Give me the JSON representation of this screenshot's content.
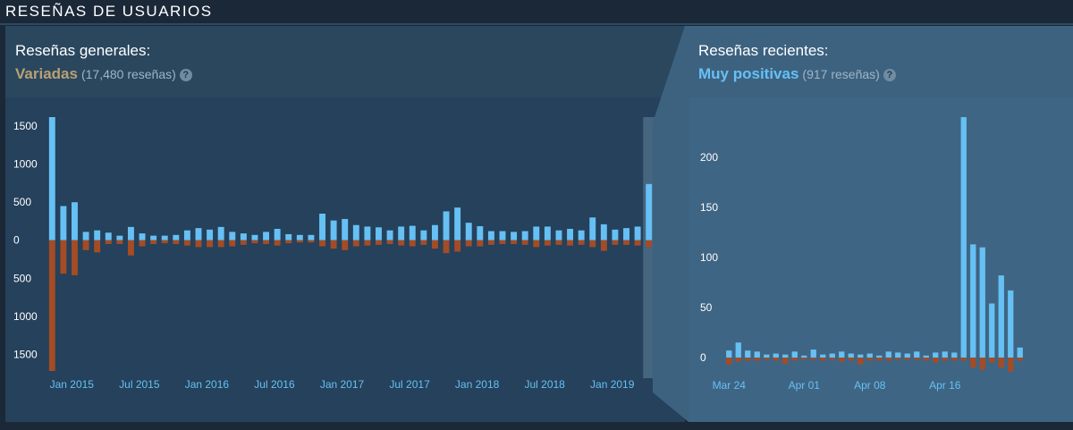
{
  "section": {
    "title": "RESEÑAS DE USUARIOS"
  },
  "overall": {
    "label": "Reseñas generales:",
    "summary": "Variadas",
    "count": "(17,480 reseñas)",
    "help": "?"
  },
  "recent": {
    "label": "Reseñas recientes:",
    "summary": "Muy positivas",
    "count": "(917 reseñas)",
    "help": "?"
  },
  "colors": {
    "positive": "#66c0f4",
    "negative": "#a34c25",
    "summary_mixed": "#b9a074",
    "summary_positive": "#66c0f4",
    "axis_text": "#ffffff",
    "date_text": "#66c0f4"
  },
  "chart_data": [
    {
      "type": "bar",
      "title": "Reseñas generales",
      "x_tick_labels": [
        "Jan 2015",
        "Jul 2015",
        "Jan 2016",
        "Jul 2016",
        "Jan 2017",
        "Jul 2017",
        "Jan 2018",
        "Jul 2018",
        "Jan 2019"
      ],
      "x_tick_index": [
        0,
        6,
        12,
        18,
        24,
        30,
        36,
        42,
        48
      ],
      "y_tick_labels": [
        "1500",
        "1000",
        "500",
        "0",
        "500",
        "1000",
        "1500"
      ],
      "y_tick_values": [
        1500,
        1000,
        500,
        0,
        -500,
        -1000,
        -1500
      ],
      "ylim": [
        -1720,
        1620
      ],
      "series": [
        {
          "values": [
            1620,
            450,
            500,
            110,
            130,
            100,
            60,
            175,
            90,
            60,
            60,
            70,
            130,
            160,
            140,
            175,
            110,
            90,
            70,
            110,
            150,
            80,
            70,
            70,
            350,
            260,
            280,
            200,
            180,
            170,
            130,
            180,
            190,
            130,
            200,
            380,
            430,
            230,
            185,
            120,
            120,
            110,
            120,
            180,
            180,
            130,
            150,
            130,
            300,
            210,
            140,
            160,
            180,
            740
          ]
        },
        {
          "values": [
            -1720,
            -440,
            -460,
            -130,
            -160,
            -50,
            -50,
            -200,
            -80,
            -50,
            -40,
            -50,
            -70,
            -90,
            -90,
            -90,
            -80,
            -60,
            -40,
            -50,
            -70,
            -40,
            -30,
            -30,
            -80,
            -110,
            -130,
            -80,
            -70,
            -60,
            -50,
            -70,
            -80,
            -60,
            -110,
            -170,
            -150,
            -80,
            -80,
            -60,
            -50,
            -50,
            -60,
            -90,
            -70,
            -60,
            -70,
            -60,
            -90,
            -140,
            -60,
            -60,
            -70,
            -90
          ]
        }
      ]
    },
    {
      "type": "bar",
      "title": "Reseñas recientes",
      "x_tick_labels": [
        "Mar 24",
        "Apr 01",
        "Apr 08",
        "Apr 16"
      ],
      "x_tick_index": [
        0,
        8,
        15,
        23
      ],
      "y_tick_labels": [
        "200",
        "150",
        "100",
        "50",
        "0"
      ],
      "y_tick_values": [
        200,
        150,
        100,
        50,
        0
      ],
      "ylim": [
        -25,
        240
      ],
      "series": [
        {
          "values": [
            7,
            15,
            7,
            6,
            3,
            4,
            3,
            6,
            2,
            8,
            3,
            4,
            6,
            4,
            3,
            4,
            2,
            6,
            5,
            4,
            6,
            2,
            5,
            6,
            5,
            240,
            113,
            110,
            54,
            82,
            67,
            10
          ]
        },
        {
          "values": [
            -7,
            -4,
            -3,
            -3,
            -2,
            -3,
            -6,
            -3,
            -2,
            -2,
            -3,
            -2,
            -4,
            -3,
            -7,
            -3,
            -3,
            -3,
            -2,
            -2,
            -2,
            -3,
            -5,
            -3,
            -3,
            -3,
            -10,
            -12,
            -5,
            -10,
            -14,
            -3
          ]
        }
      ]
    }
  ]
}
